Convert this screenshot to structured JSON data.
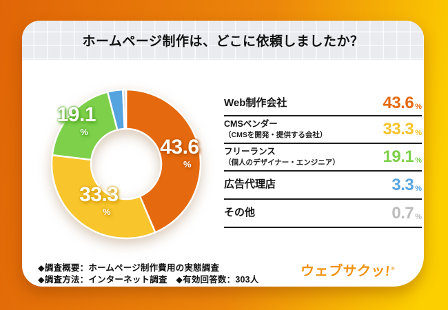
{
  "title": "ホームページ制作は、どこに依頼しましたか？",
  "chart_data": {
    "type": "pie",
    "donut": true,
    "hole_ratio": 0.47,
    "start_angle": "top",
    "clockwise": true,
    "legend_position": "right",
    "title": "ホームページ制作は、どこに依頼しましたか？",
    "categories": [
      "Web制作会社",
      "CMSベンダー（CMSを開発・提供する会社）",
      "フリーランス（個人のデザイナー・エンジニア）",
      "広告代理店",
      "その他"
    ],
    "values": [
      43.6,
      33.3,
      19.1,
      3.3,
      0.7
    ],
    "unit": "%",
    "colors": [
      "#e5690e",
      "#f8c52d",
      "#7ed04b",
      "#55a3df",
      "#d9d9d9"
    ],
    "on_chart_labels": [
      "43.6",
      "33.3",
      "19.1"
    ]
  },
  "legend": {
    "rows": [
      {
        "label": "Web制作会社",
        "sublabel": "",
        "value": "43.6",
        "unit": "%",
        "color": "#e5690e"
      },
      {
        "label": "CMSベンダー",
        "sublabel": "（CMSを開発・提供する会社）",
        "value": "33.3",
        "unit": "%",
        "color": "#f6c32b"
      },
      {
        "label": "フリーランス",
        "sublabel": "（個人のデザイナー・エンジニア）",
        "value": "19.1",
        "unit": "%",
        "color": "#7ed04b"
      },
      {
        "label": "広告代理店",
        "sublabel": "",
        "value": "3.3",
        "unit": "%",
        "color": "#58a5e0"
      },
      {
        "label": "その他",
        "sublabel": "",
        "value": "0.7",
        "unit": "%",
        "color": "#bcbcbc"
      }
    ]
  },
  "footer": {
    "line1": "◆調査概要：ホームページ制作費用の実態調査",
    "line2": "◆調査方法：インターネット調査　◆有効回答数：303人",
    "logo": "ウェブサクッ!",
    "logo_mark": "®"
  },
  "theme": {
    "bg_gradient_left": "#e06507",
    "bg_gradient_right": "#fccf00",
    "card": "#ffffff",
    "header_gray": "#e9ebef",
    "divider": "#1c1c1c",
    "logo_orange": "#f0920e"
  }
}
